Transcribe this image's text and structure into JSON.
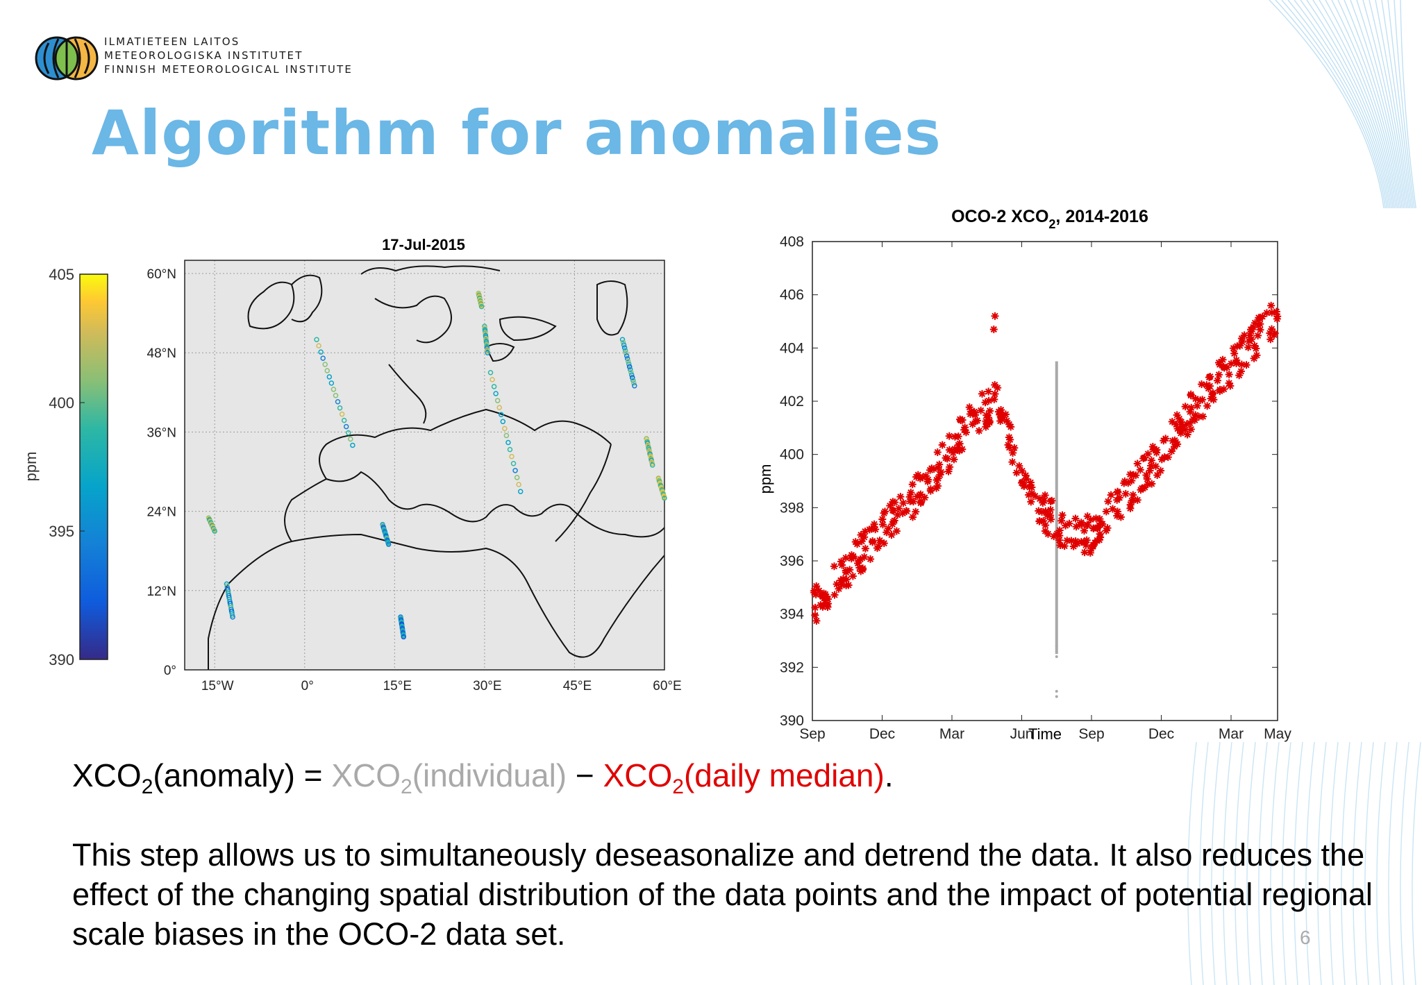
{
  "header": {
    "institute_lines": [
      "ILMATIETEEN LAITOS",
      "METEOROLOGISKA INSTITUTET",
      "FINNISH METEOROLOGICAL INSTITUTE"
    ],
    "title": "Algorithm for anomalies"
  },
  "colors": {
    "title": "#6bb7e6",
    "series_daily_median": "#e00000",
    "series_individual": "#a9a9a9"
  },
  "map": {
    "title": "17-Jul-2015",
    "colorbar_label": "ppm",
    "colorbar_ticks": [
      "405",
      "400",
      "395",
      "390"
    ],
    "colorbar_range": [
      390,
      405
    ],
    "colormap": "parula",
    "lat_ticks": [
      "60°N",
      "48°N",
      "36°N",
      "24°N",
      "12°N",
      "0°"
    ],
    "lon_ticks": [
      "15°W",
      "0°",
      "15°E",
      "30°E",
      "45°E",
      "60°E"
    ]
  },
  "chart_data": {
    "type": "scatter",
    "title": "OCO-2 XCO2, 2014-2016",
    "xlabel": "Time",
    "ylabel": "ppm",
    "x_ticks": [
      "Sep",
      "Dec",
      "Mar",
      "Jun",
      "Sep",
      "Dec",
      "Mar",
      "May"
    ],
    "ylim": [
      390,
      408
    ],
    "y_ticks": [
      390,
      392,
      394,
      396,
      398,
      400,
      402,
      404,
      406,
      408
    ],
    "series": [
      {
        "name": "XCO2(daily median)",
        "marker": "asterisk",
        "color": "#e00000",
        "x_months": [
          0,
          1,
          2,
          3,
          4,
          5,
          6,
          7,
          8,
          9,
          10,
          11,
          12,
          13,
          14,
          15,
          16,
          17,
          18,
          19,
          20
        ],
        "values": [
          394.2,
          395.2,
          396.2,
          397.2,
          398.0,
          399.0,
          400.2,
          401.5,
          402.0,
          399.0,
          397.8,
          397.0,
          397.0,
          398.0,
          399.0,
          400.0,
          401.3,
          402.3,
          403.3,
          404.3,
          405.3
        ]
      },
      {
        "name": "XCO2(individual)",
        "color": "#a9a9a9",
        "date": "17-Jul-2015",
        "range": [
          391.0,
          403.5
        ]
      }
    ]
  },
  "formula": {
    "lhs": "XCO",
    "lhs_sub": "2",
    "lhs_rest": "(anomaly) = ",
    "term1": "XCO",
    "term1_sub": "2",
    "term1_rest": "(individual)",
    "op": " − ",
    "term2": "XCO",
    "term2_sub": "2",
    "term2_rest": "(daily median)",
    "end": "."
  },
  "description": "This step allows us to simultaneously deseasonalize and detrend the data. It also reduces the effect of the changing spatial distribution of the data points and the impact of potential regional scale biases in the OCO-2 data set.",
  "slide_number": "6"
}
